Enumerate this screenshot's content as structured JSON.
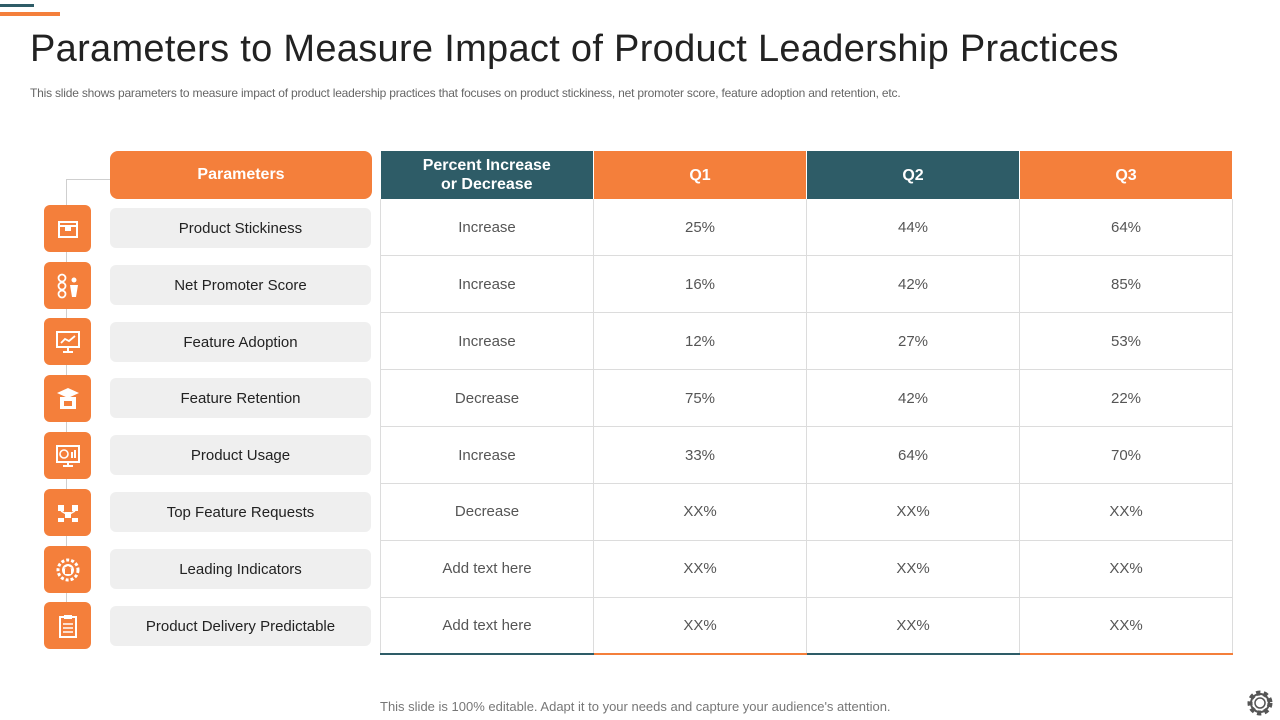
{
  "title": "Parameters to Measure Impact of Product Leadership Practices",
  "subtitle": "This slide shows parameters to measure impact of product leadership practices that focuses on product stickiness, net promoter score, feature adoption and retention, etc.",
  "parameters_header": "Parameters",
  "columns": [
    "Percent Increase or Decrease",
    "Q1",
    "Q2",
    "Q3"
  ],
  "column_line_1": "Percent Increase",
  "column_line_2": "or Decrease",
  "rows": [
    {
      "parameter": "Product Stickiness",
      "icon": "box-icon",
      "change": "Increase",
      "q1": "25%",
      "q2": "44%",
      "q3": "64%"
    },
    {
      "parameter": "Net Promoter Score",
      "icon": "feedback-faces-icon",
      "change": "Increase",
      "q1": "16%",
      "q2": "42%",
      "q3": "85%"
    },
    {
      "parameter": "Feature Adoption",
      "icon": "presentation-chart-icon",
      "change": "Increase",
      "q1": "12%",
      "q2": "27%",
      "q3": "53%"
    },
    {
      "parameter": "Feature Retention",
      "icon": "open-box-icon",
      "change": "Decrease",
      "q1": "75%",
      "q2": "42%",
      "q3": "22%"
    },
    {
      "parameter": "Product Usage",
      "icon": "dashboard-screen-icon",
      "change": "Increase",
      "q1": "33%",
      "q2": "64%",
      "q3": "70%"
    },
    {
      "parameter": "Top Feature Requests",
      "icon": "network-icon",
      "change": "Decrease",
      "q1": "XX%",
      "q2": "XX%",
      "q3": "XX%"
    },
    {
      "parameter": "Leading Indicators",
      "icon": "gear-box-icon",
      "change": "Add text here",
      "q1": "XX%",
      "q2": "XX%",
      "q3": "XX%"
    },
    {
      "parameter": "Product Delivery Predictable",
      "icon": "clipboard-icon",
      "change": "Add text here",
      "q1": "XX%",
      "q2": "XX%",
      "q3": "XX%"
    }
  ],
  "footer": "This slide is 100% editable. Adapt it to your needs and capture your audience's attention.",
  "colors": {
    "accent": "#f47f3b",
    "teal": "#2e5c67",
    "pill": "#efefef"
  }
}
